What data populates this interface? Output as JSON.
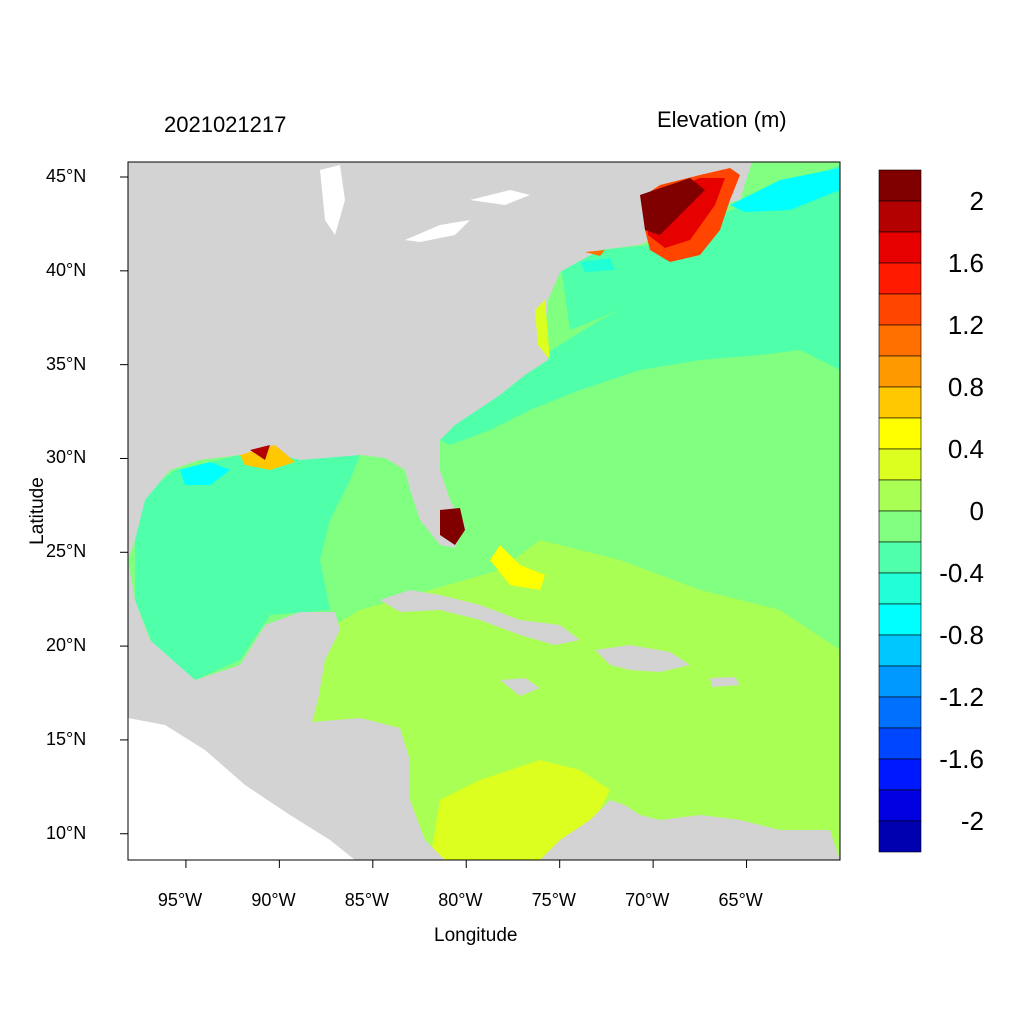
{
  "titles": {
    "left": "2021021217",
    "right": "Elevation (m)"
  },
  "axes": {
    "xlabel": "Longitude",
    "ylabel": "Latitude",
    "x_ticks": [
      "95°W",
      "90°W",
      "85°W",
      "80°W",
      "75°W",
      "70°W",
      "65°W"
    ],
    "x_tick_values": [
      -95,
      -90,
      -85,
      -80,
      -75,
      -70,
      -65
    ],
    "y_ticks": [
      "45°N",
      "40°N",
      "35°N",
      "30°N",
      "25°N",
      "20°N",
      "15°N",
      "10°N"
    ],
    "y_tick_values": [
      45,
      40,
      35,
      30,
      25,
      20,
      15,
      10
    ],
    "lon_range": [
      -98.1,
      -60.0
    ],
    "lat_range": [
      8.6,
      45.8
    ]
  },
  "colorbar": {
    "labels": [
      "2",
      "1.6",
      "1.2",
      "0.8",
      "0.4",
      "0",
      "-0.4",
      "-0.8",
      "-1.2",
      "-1.6",
      "-2"
    ],
    "levels_top_to_bottom": [
      2.2,
      2.0,
      1.8,
      1.6,
      1.4,
      1.2,
      1.0,
      0.8,
      0.6,
      0.4,
      0.2,
      0,
      -0.2,
      -0.4,
      -0.6,
      -0.8,
      -1.0,
      -1.2,
      -1.4,
      -1.6,
      -1.8,
      -2.0,
      -2.2
    ],
    "colors": [
      "#800000",
      "#b30000",
      "#e60000",
      "#ff1a00",
      "#ff4500",
      "#ff7000",
      "#ff9900",
      "#ffc800",
      "#ffff00",
      "#dcff20",
      "#aaff55",
      "#80ff80",
      "#50ffaa",
      "#20ffd5",
      "#00ffff",
      "#00c8ff",
      "#0099ff",
      "#0070ff",
      "#0045ff",
      "#0018ff",
      "#0000e0",
      "#0000b0"
    ]
  },
  "colors": {
    "land": "#d3d3d3",
    "outside_domain": "#ffffff"
  }
}
